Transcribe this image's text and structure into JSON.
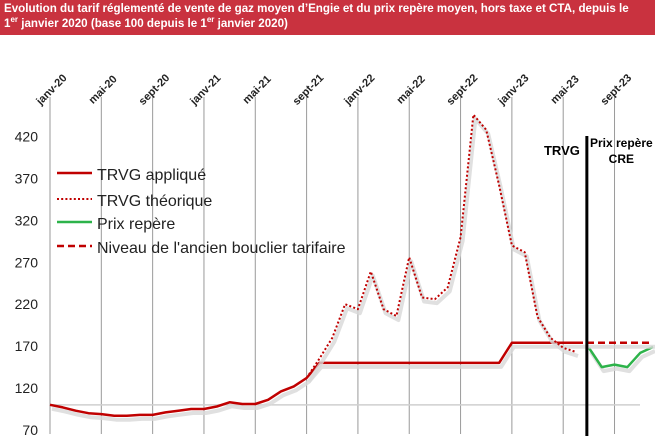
{
  "title": {
    "line1": "Evolution du tarif réglementé de vente de gaz moyen d’Engie et du prix repère moyen, hors taxe et CTA, depuis le",
    "line2_a": "1",
    "line2_sup1": "er",
    "line2_b": " janvier 2020 (base 100 depuis le 1",
    "line2_sup2": "er",
    "line2_c": " janvier 2020)"
  },
  "colors": {
    "title_bg": "#c9323f",
    "trvg": "#c00000",
    "repere": "#2db34a",
    "grid": "#9a9a9a",
    "base_line": "#cfcfcf",
    "shadow": "#d8d8d8",
    "marker": "#000000"
  },
  "chart_data": {
    "type": "line",
    "x_months_start": "2020-01",
    "x_tick_labels": [
      "janv-20",
      "mai-20",
      "sept-20",
      "janv-21",
      "mai-21",
      "sept-21",
      "janv-22",
      "mai-22",
      "sept-22",
      "janv-23",
      "mai-23",
      "sept-23"
    ],
    "ylim": [
      70,
      440
    ],
    "y_ticks": [
      70,
      120,
      170,
      220,
      270,
      320,
      370,
      420
    ],
    "baseline_value": 100,
    "series": [
      {
        "name": "TRVG appliqué",
        "style": "solid",
        "color": "#c00000",
        "points": [
          [
            "2020-01",
            100
          ],
          [
            "2020-02",
            97
          ],
          [
            "2020-03",
            93
          ],
          [
            "2020-04",
            90
          ],
          [
            "2020-05",
            89
          ],
          [
            "2020-06",
            87
          ],
          [
            "2020-07",
            87
          ],
          [
            "2020-08",
            88
          ],
          [
            "2020-09",
            88
          ],
          [
            "2020-10",
            91
          ],
          [
            "2020-11",
            93
          ],
          [
            "2020-12",
            95
          ],
          [
            "2021-01",
            95
          ],
          [
            "2021-02",
            98
          ],
          [
            "2021-03",
            103
          ],
          [
            "2021-04",
            101
          ],
          [
            "2021-05",
            101
          ],
          [
            "2021-06",
            106
          ],
          [
            "2021-07",
            116
          ],
          [
            "2021-08",
            122
          ],
          [
            "2021-09",
            132
          ],
          [
            "2021-10",
            150
          ],
          [
            "2021-11",
            150
          ],
          [
            "2021-12",
            150
          ],
          [
            "2022-01",
            150
          ],
          [
            "2022-02",
            150
          ],
          [
            "2022-03",
            150
          ],
          [
            "2022-04",
            150
          ],
          [
            "2022-05",
            150
          ],
          [
            "2022-06",
            150
          ],
          [
            "2022-07",
            150
          ],
          [
            "2022-08",
            150
          ],
          [
            "2022-09",
            150
          ],
          [
            "2022-10",
            150
          ],
          [
            "2022-11",
            150
          ],
          [
            "2022-12",
            150
          ],
          [
            "2023-01",
            174
          ],
          [
            "2023-02",
            174
          ],
          [
            "2023-03",
            174
          ],
          [
            "2023-04",
            174
          ],
          [
            "2023-05",
            174
          ],
          [
            "2023-06",
            174
          ]
        ]
      },
      {
        "name": "TRVG théorique",
        "style": "dotted",
        "color": "#c00000",
        "points": [
          [
            "2021-09",
            132
          ],
          [
            "2021-10",
            155
          ],
          [
            "2021-11",
            180
          ],
          [
            "2021-12",
            220
          ],
          [
            "2022-01",
            214
          ],
          [
            "2022-02",
            259
          ],
          [
            "2022-03",
            214
          ],
          [
            "2022-04",
            206
          ],
          [
            "2022-05",
            276
          ],
          [
            "2022-06",
            228
          ],
          [
            "2022-07",
            226
          ],
          [
            "2022-08",
            240
          ],
          [
            "2022-09",
            300
          ],
          [
            "2022-10",
            446
          ],
          [
            "2022-11",
            428
          ],
          [
            "2022-12",
            362
          ],
          [
            "2023-01",
            290
          ],
          [
            "2023-02",
            282
          ],
          [
            "2023-03",
            205
          ],
          [
            "2023-04",
            180
          ],
          [
            "2023-05",
            168
          ],
          [
            "2023-06",
            163
          ]
        ]
      },
      {
        "name": "Prix repère",
        "style": "solid",
        "color": "#2db34a",
        "points": [
          [
            "2023-07",
            168
          ],
          [
            "2023-08",
            145
          ],
          [
            "2023-09",
            148
          ],
          [
            "2023-10",
            145
          ],
          [
            "2023-11",
            162
          ],
          [
            "2023-12",
            169
          ]
        ]
      },
      {
        "name": "Niveau de l'ancien bouclier tarifaire",
        "style": "dashed",
        "color": "#c00000",
        "points": [
          [
            "2023-06",
            174
          ],
          [
            "2023-12",
            174
          ]
        ]
      }
    ],
    "annotations": [
      {
        "text": "TRVG",
        "at": "2023-07"
      },
      {
        "text_line1": "Prix repère",
        "text_line2": "CRE",
        "at": "2023-10"
      }
    ],
    "legend_position": "top-left",
    "grid": "vertical"
  }
}
